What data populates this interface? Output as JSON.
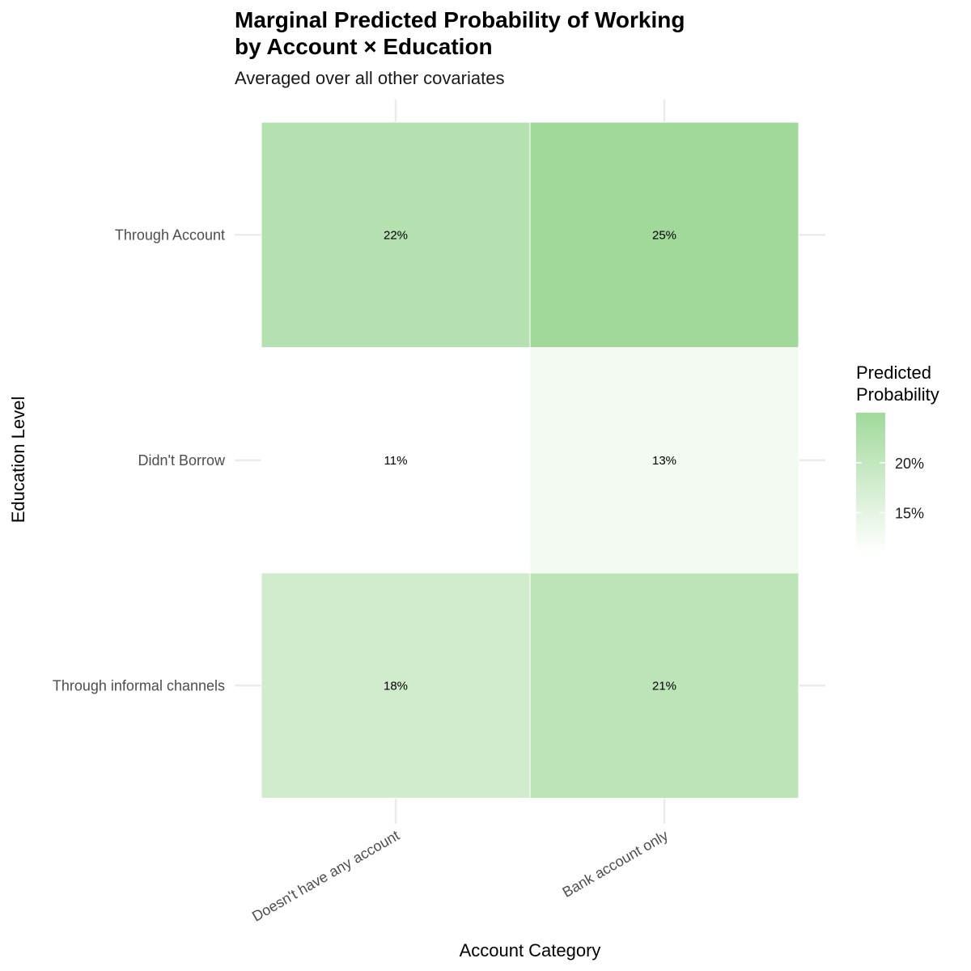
{
  "chart_data": {
    "type": "heatmap",
    "title_lines": [
      "Marginal Predicted Probability of Working",
      "by Account × Education"
    ],
    "subtitle": "Averaged over all other covariates",
    "xlabel": "Account Category",
    "ylabel": "Education Level",
    "x_categories": [
      "Doesn't have any account",
      "Bank account only"
    ],
    "y_categories": [
      "Through Account",
      "Didn't Borrow",
      "Through informal channels"
    ],
    "values": [
      [
        0.22,
        0.25
      ],
      [
        0.11,
        0.13
      ],
      [
        0.18,
        0.21
      ]
    ],
    "cell_labels": [
      [
        "22%",
        "25%"
      ],
      [
        "11%",
        "13%"
      ],
      [
        "18%",
        "21%"
      ]
    ],
    "legend": {
      "title_lines": [
        "Predicted",
        "Probability"
      ],
      "breaks": [
        0.2,
        0.15
      ],
      "break_labels": [
        "20%",
        "15%"
      ],
      "placement": "right"
    },
    "color_scale": {
      "low": "#ffffff",
      "high": "#a1d99b",
      "min": 0.11,
      "max": 0.25
    },
    "grid": true
  }
}
